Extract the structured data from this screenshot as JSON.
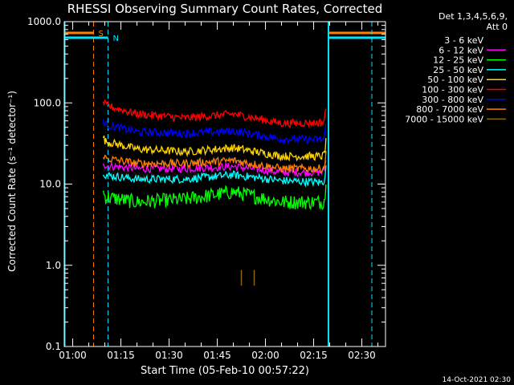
{
  "chart_data": {
    "type": "line",
    "title": "RHESSI Observing Summary Count Rates, Corrected",
    "xlabel": "Start Time (05-Feb-10 00:57:22)",
    "ylabel": "Corrected Count Rate (s⁻¹ detector⁻¹)",
    "y_scale": "log",
    "ylim": [
      0.1,
      1000
    ],
    "xlim": [
      "00:57:22",
      "02:37:22"
    ],
    "x_ticks": [
      "01:00",
      "01:15",
      "01:30",
      "01:45",
      "02:00",
      "02:15",
      "02:30"
    ],
    "y_ticks": [
      "0.1",
      "1.0",
      "10.0",
      "100.0",
      "1000.0"
    ],
    "legend_header": [
      "Det 1,3,4,5,6,9,",
      "Att 0"
    ],
    "legend_position": "top-right outside",
    "footer_date": "14-Oct-2021 02:30",
    "markers": [
      {
        "label": "S",
        "color": "#ff7f00",
        "start": "01:06:30",
        "end": "02:19:30"
      },
      {
        "label": "N",
        "color": "#00e5ff",
        "start": "01:11:00",
        "end": "02:19:30"
      }
    ],
    "data_interval": [
      "01:09:30",
      "02:19:00"
    ],
    "series": [
      {
        "name": "3 - 6 keV",
        "color": "#000000",
        "values": [
          {
            "t": "01:09:30",
            "y": 14
          },
          {
            "t": "01:20:00",
            "y": 13
          },
          {
            "t": "01:35:00",
            "y": 12.5
          },
          {
            "t": "01:50:00",
            "y": 13
          },
          {
            "t": "02:05:00",
            "y": 11.5
          },
          {
            "t": "02:18:00",
            "y": 11
          }
        ]
      },
      {
        "name": "6 - 12 keV",
        "color": "#ff00ff",
        "values": [
          {
            "t": "01:09:30",
            "y": 17
          },
          {
            "t": "01:20:00",
            "y": 15.5
          },
          {
            "t": "01:35:00",
            "y": 15.5
          },
          {
            "t": "01:50:00",
            "y": 16.5
          },
          {
            "t": "02:05:00",
            "y": 14
          },
          {
            "t": "02:18:00",
            "y": 14
          }
        ]
      },
      {
        "name": "12 - 25 keV",
        "color": "#00ff00",
        "values": [
          {
            "t": "01:09:30",
            "y": 7
          },
          {
            "t": "01:20:00",
            "y": 6
          },
          {
            "t": "01:35:00",
            "y": 6.5
          },
          {
            "t": "01:50:00",
            "y": 8
          },
          {
            "t": "02:05:00",
            "y": 6
          },
          {
            "t": "02:18:00",
            "y": 6
          }
        ]
      },
      {
        "name": "25 - 50 keV",
        "color": "#00ffff",
        "values": [
          {
            "t": "01:09:30",
            "y": 13
          },
          {
            "t": "01:20:00",
            "y": 11.5
          },
          {
            "t": "01:35:00",
            "y": 11.5
          },
          {
            "t": "01:50:00",
            "y": 13
          },
          {
            "t": "02:05:00",
            "y": 11
          },
          {
            "t": "02:18:00",
            "y": 10.5
          }
        ]
      },
      {
        "name": "50 - 100 keV",
        "color": "#ffd700",
        "values": [
          {
            "t": "01:09:30",
            "y": 34
          },
          {
            "t": "01:20:00",
            "y": 27
          },
          {
            "t": "01:35:00",
            "y": 25
          },
          {
            "t": "01:50:00",
            "y": 28
          },
          {
            "t": "02:05:00",
            "y": 22
          },
          {
            "t": "02:18:00",
            "y": 22
          }
        ]
      },
      {
        "name": "100 - 300 keV",
        "color": "#ff0000",
        "values": [
          {
            "t": "01:09:30",
            "y": 95
          },
          {
            "t": "01:20:00",
            "y": 73
          },
          {
            "t": "01:35:00",
            "y": 65
          },
          {
            "t": "01:50:00",
            "y": 73
          },
          {
            "t": "02:05:00",
            "y": 56
          },
          {
            "t": "02:18:00",
            "y": 57
          }
        ]
      },
      {
        "name": "300 - 800 keV",
        "color": "#0000ff",
        "values": [
          {
            "t": "01:09:30",
            "y": 55
          },
          {
            "t": "01:20:00",
            "y": 44
          },
          {
            "t": "01:35:00",
            "y": 42
          },
          {
            "t": "01:50:00",
            "y": 45
          },
          {
            "t": "02:05:00",
            "y": 36
          },
          {
            "t": "02:18:00",
            "y": 35
          }
        ]
      },
      {
        "name": "800 - 7000 keV",
        "color": "#ff7f00",
        "values": [
          {
            "t": "01:09:30",
            "y": 21
          },
          {
            "t": "01:20:00",
            "y": 18
          },
          {
            "t": "01:35:00",
            "y": 18
          },
          {
            "t": "01:50:00",
            "y": 19.5
          },
          {
            "t": "02:05:00",
            "y": 15.5
          },
          {
            "t": "02:18:00",
            "y": 15.5
          }
        ]
      },
      {
        "name": "7000 - 15000 keV",
        "color": "#8b6508",
        "values": [
          {
            "t": "01:52:30",
            "y": 0.7
          },
          {
            "t": "01:56:30",
            "y": 0.7
          }
        ]
      }
    ]
  }
}
